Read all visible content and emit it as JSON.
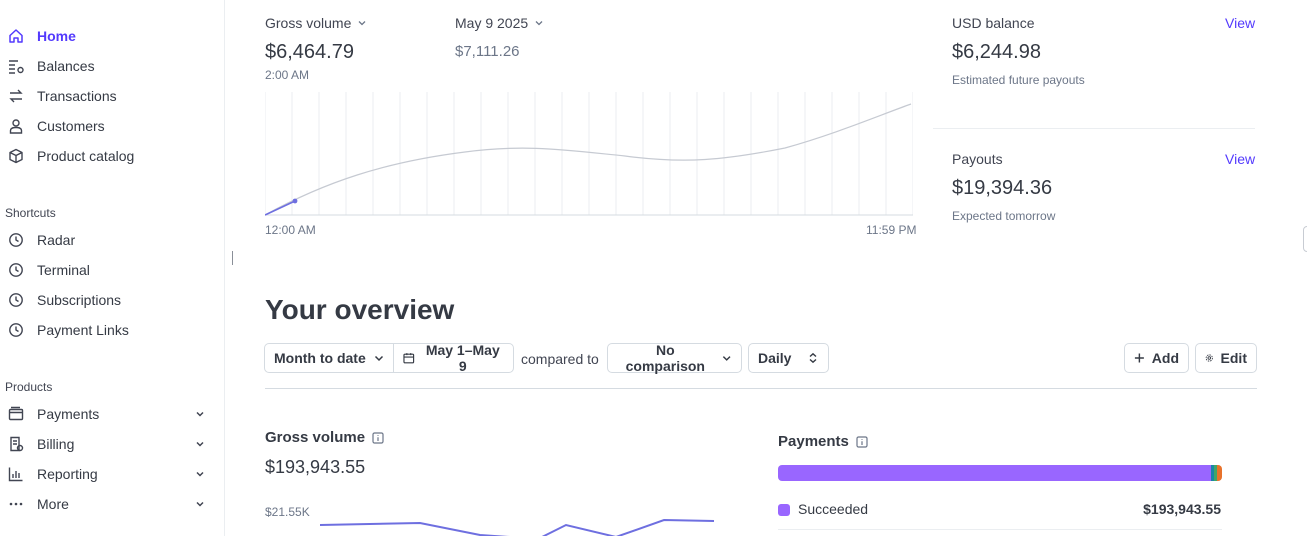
{
  "colors": {
    "accent": "#533afd",
    "chart_line": "#c6cad2",
    "chart_highlight": "#6e6fe0",
    "payments_succeeded": "#9966ff",
    "payments_seg2": "#1a86a6",
    "payments_seg3": "#3fa66a",
    "payments_seg4": "#e8722b"
  },
  "sidebar": {
    "items": [
      {
        "label": "Home",
        "icon": "home-icon",
        "active": true
      },
      {
        "label": "Balances",
        "icon": "balances-icon"
      },
      {
        "label": "Transactions",
        "icon": "transactions-icon"
      },
      {
        "label": "Customers",
        "icon": "person-icon"
      },
      {
        "label": "Product catalog",
        "icon": "box-icon"
      }
    ],
    "shortcuts_label": "Shortcuts",
    "shortcuts": [
      {
        "label": "Radar",
        "icon": "clock-icon"
      },
      {
        "label": "Terminal",
        "icon": "clock-icon"
      },
      {
        "label": "Subscriptions",
        "icon": "clock-icon"
      },
      {
        "label": "Payment Links",
        "icon": "clock-icon"
      }
    ],
    "products_label": "Products",
    "products": [
      {
        "label": "Payments",
        "icon": "wallet-icon",
        "expandable": true
      },
      {
        "label": "Billing",
        "icon": "billing-icon",
        "expandable": true
      },
      {
        "label": "Reporting",
        "icon": "bar-chart-icon",
        "expandable": true
      },
      {
        "label": "More",
        "icon": "dots-icon",
        "expandable": true
      }
    ]
  },
  "today": {
    "metric_label": "Gross volume",
    "metric_value": "$6,464.79",
    "metric_time": "2:00 AM",
    "compare_label": "May 9 2025",
    "compare_value": "$7,111.26",
    "axis_start": "12:00 AM",
    "axis_end": "11:59 PM"
  },
  "balances": {
    "usd_title": "USD balance",
    "usd_link": "View",
    "usd_value": "$6,244.98",
    "usd_sub": "Estimated future payouts",
    "payouts_title": "Payouts",
    "payouts_link": "View",
    "payouts_value": "$19,394.36",
    "payouts_sub": "Expected tomorrow"
  },
  "overview": {
    "title": "Your overview",
    "range_label": "Month to date",
    "date_label": "May 1–May 9",
    "compared_text": "compared to",
    "comparison_label": "No comparison",
    "interval_label": "Daily",
    "add_label": "Add",
    "edit_label": "Edit"
  },
  "gross_volume": {
    "title": "Gross volume",
    "value": "$193,943.55",
    "axis_top": "$21.55K"
  },
  "payments": {
    "title": "Payments",
    "bar_shares": [
      0.975,
      0.006,
      0.007,
      0.012
    ],
    "succeeded_label": "Succeeded",
    "succeeded_value": "$193,943.55"
  }
}
